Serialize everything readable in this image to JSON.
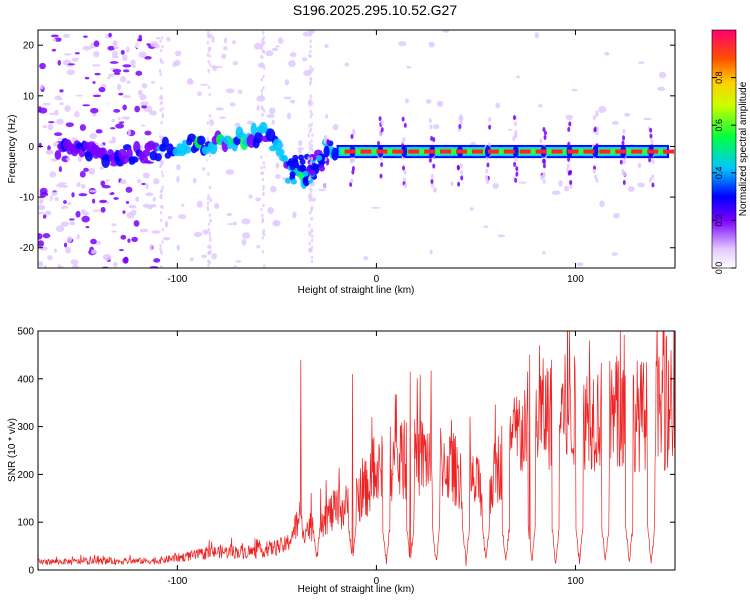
{
  "title": "S196.2025.295.10.52.G27",
  "chart_data": [
    {
      "type": "heatmap",
      "xlabel": "Height of straight line (km)",
      "ylabel": "Frequency (Hz)",
      "xlim": [
        -170,
        150
      ],
      "ylim": [
        -24,
        23
      ],
      "xticks": [
        -100,
        0,
        100
      ],
      "xtick_labels": [
        "-100",
        "0",
        "100"
      ],
      "yticks": [
        -20,
        -10,
        0,
        10,
        20
      ],
      "ytick_labels": [
        "-20",
        "-10",
        "0",
        "10",
        "20"
      ],
      "colorbar": {
        "label": "Normalized spectral amplitude",
        "range": [
          0,
          1
        ],
        "ticks": [
          0.0,
          0.2,
          0.4,
          0.6,
          0.8
        ],
        "tick_labels": [
          "0.0",
          "0.2",
          "0.4",
          "0.6",
          "0.8"
        ]
      },
      "ridge_points": [
        [
          -140,
          -2
        ],
        [
          -120,
          -1.5
        ],
        [
          -100,
          0
        ],
        [
          -85,
          0.5
        ],
        [
          -70,
          1.5
        ],
        [
          -55,
          2.5
        ],
        [
          -45,
          -3
        ],
        [
          -35,
          -6.5
        ],
        [
          -25,
          0
        ],
        [
          -15,
          -1
        ],
        [
          0,
          -1
        ],
        [
          25,
          -1
        ],
        [
          50,
          -1
        ],
        [
          75,
          -1
        ],
        [
          100,
          -1
        ],
        [
          125,
          -1
        ],
        [
          145,
          -1
        ]
      ]
    },
    {
      "type": "line",
      "xlabel": "Height of straight line (km)",
      "ylabel": "SNR (10 * v/v)",
      "xlim": [
        -170,
        150
      ],
      "ylim": [
        0,
        500
      ],
      "xticks": [
        -100,
        0,
        100
      ],
      "xtick_labels": [
        "-100",
        "0",
        "100"
      ],
      "yticks": [
        0,
        100,
        200,
        300,
        400,
        500
      ],
      "ytick_labels": [
        "0",
        "100",
        "200",
        "300",
        "400",
        "500"
      ],
      "color": "#ee2222",
      "envelope": {
        "x": [
          -170,
          -110,
          -95,
          -80,
          -60,
          -45,
          -40,
          -35,
          -25,
          -15,
          -5,
          5,
          15,
          25,
          35,
          45,
          55,
          65,
          75,
          85,
          95,
          105,
          115,
          125,
          135,
          150
        ],
        "y": [
          18,
          20,
          30,
          40,
          40,
          55,
          100,
          90,
          120,
          140,
          180,
          230,
          240,
          250,
          235,
          200,
          170,
          260,
          320,
          345,
          350,
          345,
          340,
          345,
          340,
          350
        ]
      },
      "spikes": [
        {
          "x": -38,
          "y": 440
        },
        {
          "x": -12,
          "y": 410
        },
        {
          "x": 17,
          "y": 415
        },
        {
          "x": 77,
          "y": 450
        },
        {
          "x": 82,
          "y": 470
        },
        {
          "x": 97,
          "y": 505
        },
        {
          "x": 107,
          "y": 480
        },
        {
          "x": 148,
          "y": 460
        }
      ],
      "dips": [
        -30,
        -12,
        5,
        17,
        30,
        45,
        55,
        65,
        78,
        90,
        102,
        115,
        127,
        138
      ]
    }
  ]
}
